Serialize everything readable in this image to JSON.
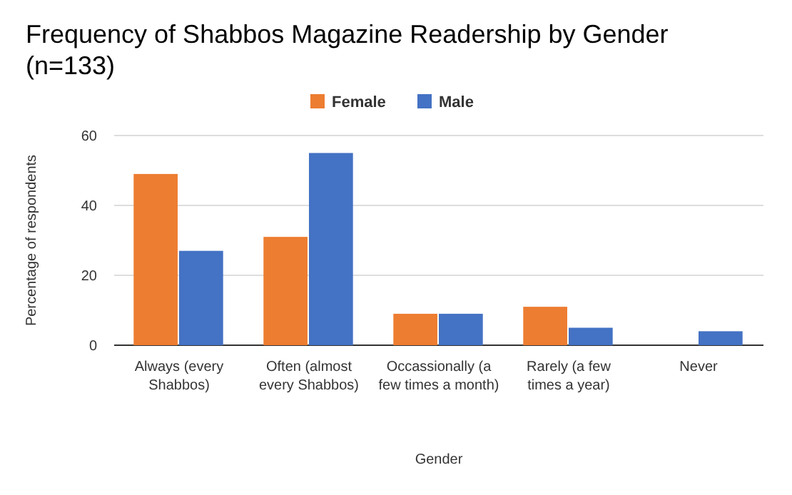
{
  "chart_data": {
    "type": "bar",
    "title": "Frequency of Shabbos Magazine Readership by Gender (n=133)",
    "categories": [
      "Always (every Shabbos)",
      "Often (almost every Shabbos)",
      "Occassionally (a few times a month)",
      "Rarely (a few times a year)",
      "Never"
    ],
    "series": [
      {
        "name": "Female",
        "color": "#ed7d31",
        "values": [
          49,
          31,
          9,
          11,
          0
        ]
      },
      {
        "name": "Male",
        "color": "#4472c4",
        "values": [
          27,
          55,
          9,
          5,
          4
        ]
      }
    ],
    "xlabel": "Gender",
    "ylabel": "Percentage of respondents",
    "ylim": [
      0,
      60
    ],
    "yticks": [
      0,
      20,
      40,
      60
    ],
    "grid": "y",
    "legend": "top"
  }
}
